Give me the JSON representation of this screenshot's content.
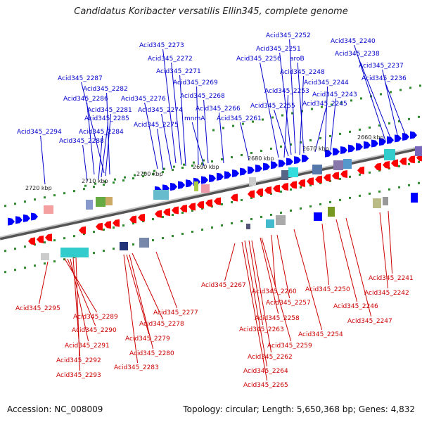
{
  "title": "Candidatus Koribacter versatilis Ellin345, complete genome",
  "accession": "Accession: NC_008009",
  "summary": "Topology: circular; Length: 5,650,368 bp; Genes: 4,832",
  "colors": {
    "forward": "#0000ff",
    "reverse": "#ff0000",
    "forward_label": "#0000cc",
    "reverse_label": "#cc0000",
    "backbone": "#888888",
    "tick_dot": "#2e8b2e"
  },
  "ticks": [
    "2720 kbp",
    "2710 kbp",
    "2700 kbp",
    "2690 kbp",
    "2680 kbp",
    "2670 kbp",
    "2660 kbp"
  ],
  "top_labels": [
    "Acid345_2294",
    "Acid345_2288",
    "Acid345_2284",
    "Acid345_2285",
    "Acid345_2281",
    "Acid345_2286",
    "Acid345_2282",
    "Acid345_2287",
    "Acid345_2275",
    "Acid345_2274",
    "Acid345_2276",
    "Acid345_2271",
    "Acid345_2272",
    "Acid345_2273",
    "Acid345_2269",
    "Acid345_2268",
    "mnmA",
    "Acid345_2266",
    "Acid345_2261",
    "Acid345_2256",
    "Acid345_2255",
    "Acid345_2253",
    "Acid345_2251",
    "Acid345_2252",
    "aroB",
    "Acid345_2248",
    "Acid345_2244",
    "Acid345_2245",
    "Acid345_2243",
    "Acid345_2240",
    "Acid345_2238",
    "Acid345_2237",
    "Acid345_2236"
  ],
  "bottom_labels": [
    "Acid345_2295",
    "Acid345_2289",
    "Acid345_2290",
    "Acid345_2291",
    "Acid345_2292",
    "Acid345_2293",
    "Acid345_2277",
    "Acid345_2278",
    "Acid345_2279",
    "Acid345_2280",
    "Acid345_2283",
    "Acid345_2267",
    "Acid345_2260",
    "Acid345_2257",
    "Acid345_2258",
    "Acid345_2263",
    "Acid345_2259",
    "Acid345_2262",
    "Acid345_2264",
    "Acid345_2265",
    "Acid345_2250",
    "Acid345_2254",
    "Acid345_2246",
    "Acid345_2247",
    "Acid345_2241",
    "Acid345_2242"
  ]
}
